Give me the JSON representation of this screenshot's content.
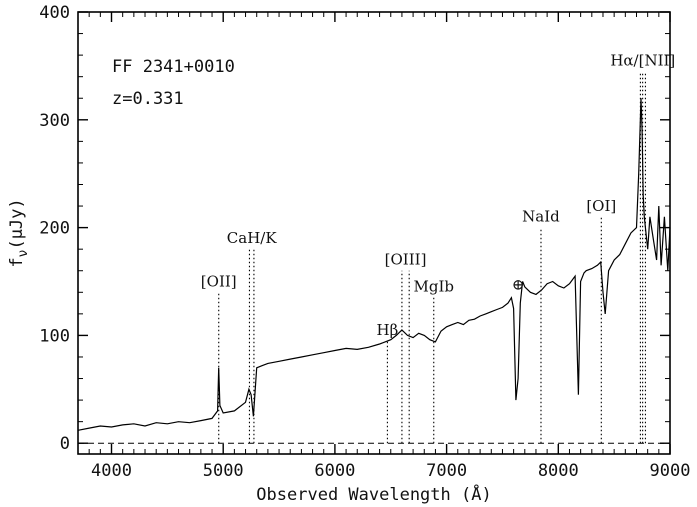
{
  "chart_data": {
    "type": "line",
    "object_name": "FF 2341+0010",
    "redshift_label": "z=0.331",
    "xlabel": "Observed Wavelength (Å)",
    "ylabel": "f",
    "ylabel_sub": "ν",
    "ylabel_unit": "(μJy)",
    "xlim": [
      3700,
      9000
    ],
    "ylim": [
      -10,
      400
    ],
    "x_ticks": [
      4000,
      5000,
      6000,
      7000,
      8000,
      9000
    ],
    "x_tick_labels": [
      "4000",
      "5000",
      "6000",
      "7000",
      "8000",
      "9000"
    ],
    "y_ticks": [
      0,
      100,
      200,
      300,
      400
    ],
    "y_tick_labels": [
      "0",
      "100",
      "200",
      "300",
      "400"
    ],
    "grid": false,
    "zero_line": "dashed",
    "telluric_symbol": "⊕",
    "telluric_position": [
      7640,
      150
    ],
    "lines": [
      {
        "label": "[OII]",
        "x": [
          4960
        ],
        "top": 140
      },
      {
        "label": "CaH/K",
        "x": [
          5235,
          5275
        ],
        "top": 180
      },
      {
        "label": "Hβ",
        "x": [
          6470
        ],
        "top": 95
      },
      {
        "label": "[OIII]",
        "x": [
          6600,
          6665
        ],
        "top": 160
      },
      {
        "label": "MgIb",
        "x": [
          6885
        ],
        "top": 135
      },
      {
        "label": "NaId",
        "x": [
          7845
        ],
        "top": 200
      },
      {
        "label": "[OI]",
        "x": [
          8385
        ],
        "top": 210
      },
      {
        "label": "Hα/[NII]",
        "x": [
          8735,
          8755,
          8780
        ],
        "top": 345
      }
    ],
    "series": [
      {
        "x": [
          3700,
          3800,
          3900,
          4000,
          4100,
          4200,
          4300,
          4400,
          4500,
          4600,
          4700,
          4800,
          4900,
          4950,
          4960,
          4970,
          5000,
          5100,
          5200,
          5230,
          5250,
          5270,
          5300,
          5350,
          5400,
          5500,
          5600,
          5700,
          5800,
          5900,
          6000,
          6100,
          6200,
          6300,
          6400,
          6500,
          6550,
          6600,
          6650,
          6700,
          6750,
          6800,
          6850,
          6900,
          6950,
          7000,
          7050,
          7100,
          7150,
          7200,
          7250,
          7300,
          7350,
          7400,
          7450,
          7500,
          7550,
          7580,
          7600,
          7620,
          7640,
          7660,
          7680,
          7700,
          7750,
          7800,
          7850,
          7900,
          7950,
          8000,
          8050,
          8100,
          8150,
          8180,
          8200,
          8230,
          8250,
          8300,
          8350,
          8380,
          8400,
          8420,
          8450,
          8500,
          8550,
          8600,
          8650,
          8700,
          8720,
          8740,
          8750,
          8760,
          8770,
          8780,
          8800,
          8820,
          8850,
          8880,
          8900,
          8920,
          8950,
          8980,
          9000
        ],
        "values": [
          12,
          14,
          16,
          15,
          17,
          18,
          16,
          19,
          18,
          20,
          19,
          21,
          23,
          30,
          70,
          35,
          28,
          30,
          38,
          50,
          45,
          25,
          70,
          72,
          74,
          76,
          78,
          80,
          82,
          84,
          86,
          88,
          87,
          89,
          92,
          96,
          100,
          105,
          100,
          98,
          102,
          100,
          96,
          94,
          104,
          108,
          110,
          112,
          110,
          114,
          115,
          118,
          120,
          122,
          124,
          126,
          130,
          135,
          125,
          40,
          60,
          130,
          150,
          145,
          140,
          138,
          142,
          148,
          150,
          146,
          144,
          148,
          155,
          45,
          150,
          158,
          160,
          162,
          165,
          168,
          140,
          120,
          160,
          170,
          175,
          185,
          195,
          200,
          250,
          320,
          290,
          230,
          210,
          200,
          180,
          210,
          190,
          170,
          220,
          165,
          210,
          160,
          200
        ]
      }
    ]
  }
}
